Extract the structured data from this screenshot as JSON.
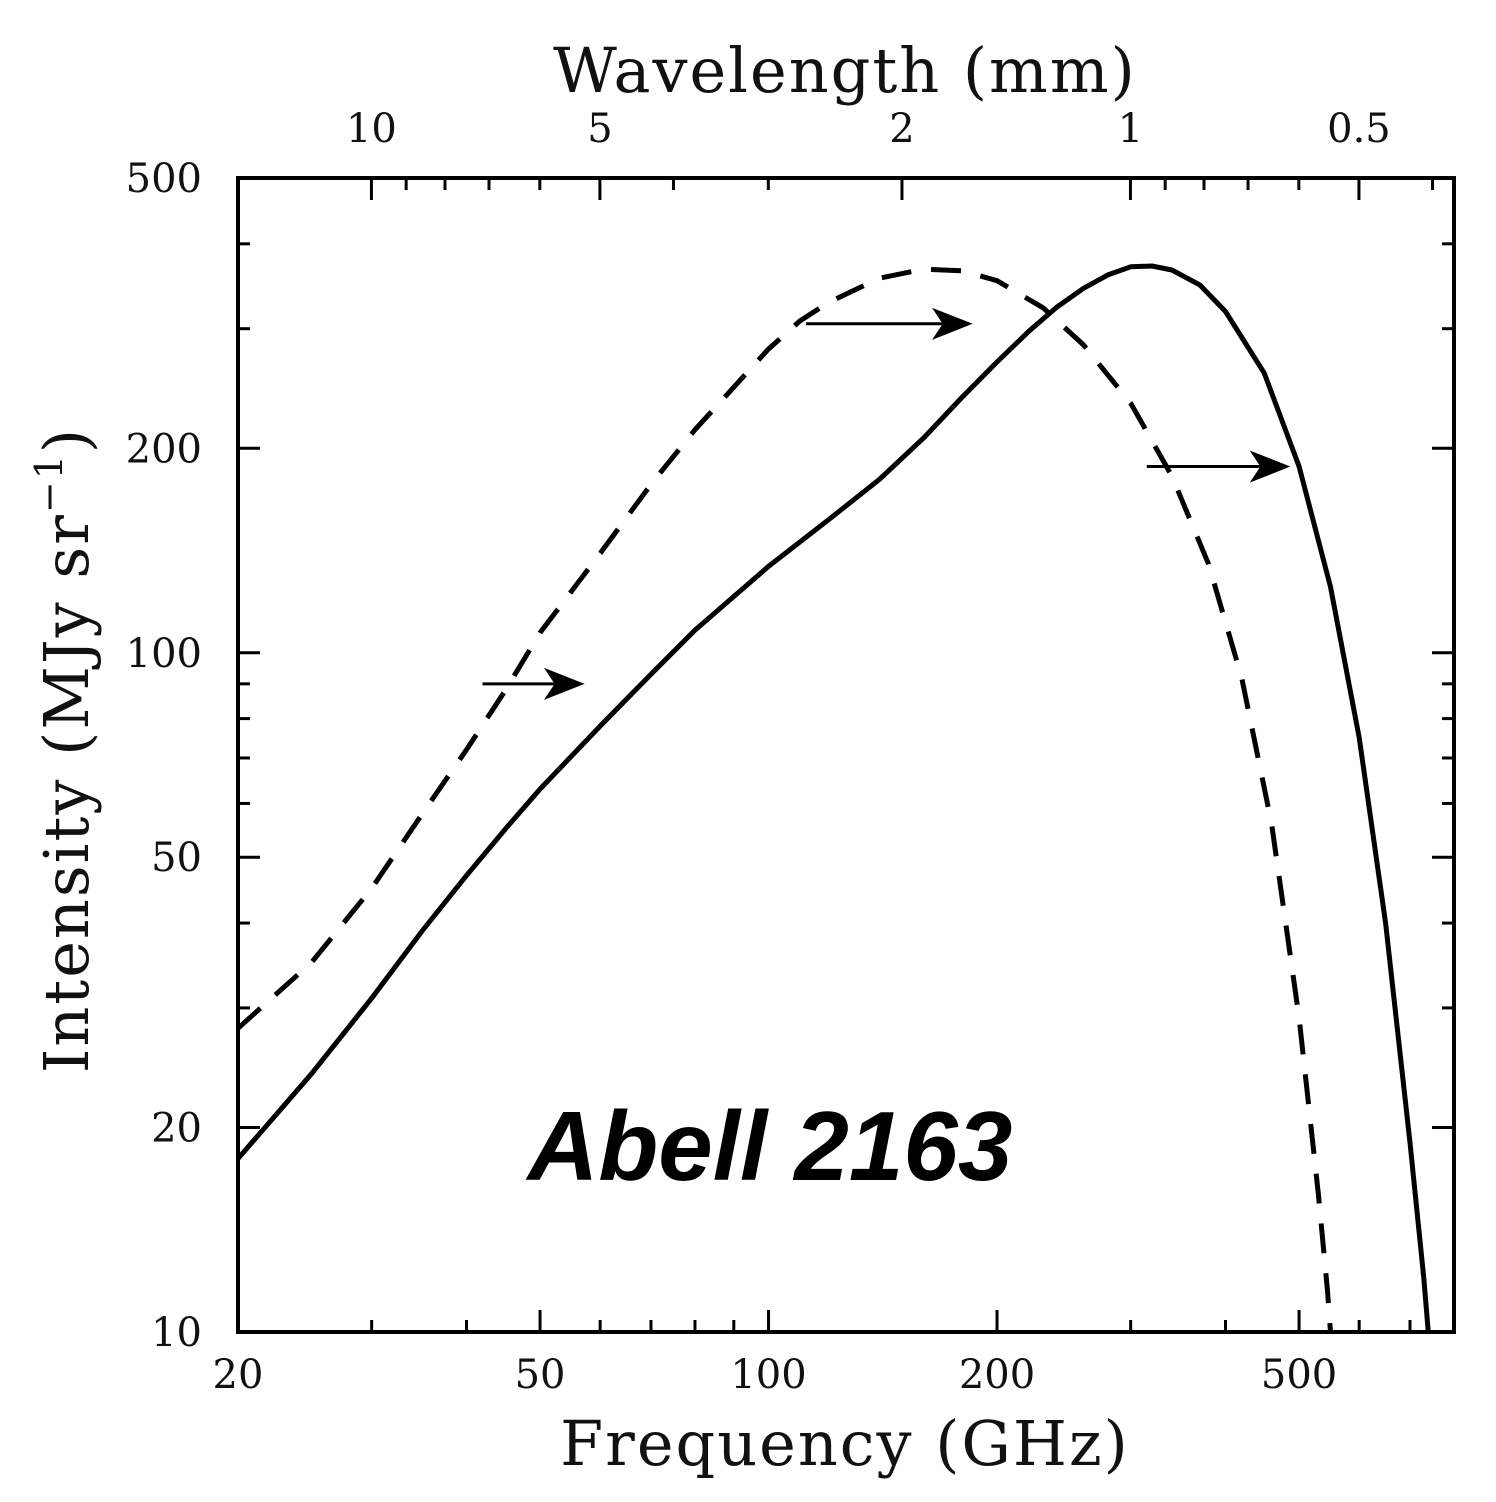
{
  "chart_data": {
    "type": "line",
    "annotation": "Abell 2163",
    "xlabel": "Frequency (GHz)",
    "ylabel": "Intensity (MJy sr",
    "ylabel_exponent": "−1",
    "ylabel_close": ")",
    "top_xlabel": "Wavelength (mm)",
    "x_scale": "log",
    "y_scale": "log",
    "xlim": [
      20,
      800
    ],
    "ylim": [
      10,
      500
    ],
    "x_ticks": [
      {
        "value": 20,
        "label": "20"
      },
      {
        "value": 50,
        "label": "50"
      },
      {
        "value": 100,
        "label": "100"
      },
      {
        "value": 200,
        "label": "200"
      },
      {
        "value": 500,
        "label": "500"
      }
    ],
    "y_ticks": [
      {
        "value": 10,
        "label": "10"
      },
      {
        "value": 20,
        "label": "20"
      },
      {
        "value": 50,
        "label": "50"
      },
      {
        "value": 100,
        "label": "100"
      },
      {
        "value": 200,
        "label": "200"
      },
      {
        "value": 500,
        "label": "500"
      }
    ],
    "top_ticks": [
      {
        "wavelength_mm": 10,
        "label": "10"
      },
      {
        "wavelength_mm": 5,
        "label": "5"
      },
      {
        "wavelength_mm": 2,
        "label": "2"
      },
      {
        "wavelength_mm": 1,
        "label": "1"
      },
      {
        "wavelength_mm": 0.5,
        "label": "0.5"
      }
    ],
    "grid": false,
    "series": [
      {
        "style": "dashed",
        "color": "#000000",
        "points": [
          [
            20,
            28
          ],
          [
            25,
            35
          ],
          [
            30,
            45
          ],
          [
            35,
            58
          ],
          [
            40,
            72
          ],
          [
            45,
            88
          ],
          [
            50,
            107
          ],
          [
            60,
            140
          ],
          [
            70,
            177
          ],
          [
            80,
            213
          ],
          [
            90,
            246
          ],
          [
            100,
            280
          ],
          [
            110,
            308
          ],
          [
            120,
            328
          ],
          [
            140,
            356
          ],
          [
            160,
            367
          ],
          [
            180,
            365
          ],
          [
            200,
            353
          ],
          [
            230,
            322
          ],
          [
            260,
            284
          ],
          [
            300,
            233
          ],
          [
            340,
            182
          ],
          [
            380,
            135
          ],
          [
            420,
            92
          ],
          [
            460,
            56
          ],
          [
            500,
            29
          ],
          [
            530,
            16
          ],
          [
            545,
            11.5
          ],
          [
            550,
            10
          ]
        ]
      },
      {
        "style": "solid",
        "color": "#000000",
        "points": [
          [
            20,
            18
          ],
          [
            25,
            24
          ],
          [
            30,
            31
          ],
          [
            35,
            39
          ],
          [
            40,
            47
          ],
          [
            45,
            55
          ],
          [
            50,
            63
          ],
          [
            60,
            78
          ],
          [
            70,
            93
          ],
          [
            80,
            108
          ],
          [
            90,
            121
          ],
          [
            100,
            134
          ],
          [
            120,
            157
          ],
          [
            140,
            180
          ],
          [
            160,
            207
          ],
          [
            180,
            238
          ],
          [
            200,
            268
          ],
          [
            220,
            297
          ],
          [
            240,
            323
          ],
          [
            260,
            344
          ],
          [
            280,
            360
          ],
          [
            300,
            370
          ],
          [
            320,
            371
          ],
          [
            340,
            366
          ],
          [
            370,
            348
          ],
          [
            400,
            318
          ],
          [
            450,
            258
          ],
          [
            500,
            188
          ],
          [
            550,
            125
          ],
          [
            600,
            75
          ],
          [
            650,
            40
          ],
          [
            700,
            19
          ],
          [
            730,
            12
          ],
          [
            740,
            10
          ]
        ]
      }
    ],
    "arrows": [
      {
        "from": [
          42,
          90
        ],
        "to": [
          57,
          90
        ]
      },
      {
        "from": [
          112,
          305
        ],
        "to": [
          185,
          305
        ]
      },
      {
        "from": [
          315,
          188
        ],
        "to": [
          485,
          188
        ]
      }
    ]
  }
}
